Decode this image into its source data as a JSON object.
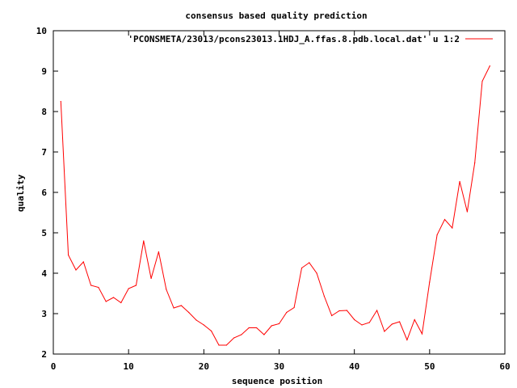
{
  "chart_data": {
    "type": "line",
    "title": "consensus based quality prediction",
    "xlabel": "sequence position",
    "ylabel": "quality",
    "xlim": [
      0,
      60
    ],
    "ylim": [
      2,
      10
    ],
    "xticks": [
      "0",
      "10",
      "20",
      "30",
      "40",
      "50",
      "60"
    ],
    "yticks": [
      "2",
      "3",
      "4",
      "5",
      "6",
      "7",
      "8",
      "9",
      "10"
    ],
    "grid": false,
    "legend_position": "top-right",
    "series": [
      {
        "name": "'PCONSMETA/23013/pcons23013.1HDJ_A.ffas.8.pdb.local.dat' u 1:2",
        "color": "#ff0000",
        "x": [
          1,
          2,
          3,
          4,
          5,
          6,
          7,
          8,
          9,
          10,
          11,
          12,
          13,
          14,
          15,
          16,
          17,
          18,
          19,
          20,
          21,
          22,
          23,
          24,
          25,
          26,
          27,
          28,
          29,
          30,
          31,
          32,
          33,
          34,
          35,
          36,
          37,
          38,
          39,
          40,
          41,
          42,
          43,
          44,
          45,
          46,
          47,
          48,
          49,
          50,
          51,
          52,
          53,
          54,
          55,
          56,
          57,
          58
        ],
        "y": [
          8.25,
          4.45,
          4.08,
          4.28,
          3.7,
          3.65,
          3.3,
          3.4,
          3.27,
          3.62,
          3.7,
          4.8,
          3.87,
          4.53,
          3.6,
          3.14,
          3.2,
          3.03,
          2.84,
          2.72,
          2.57,
          2.22,
          2.22,
          2.4,
          2.48,
          2.65,
          2.65,
          2.48,
          2.7,
          2.75,
          3.03,
          3.15,
          4.13,
          4.26,
          4.0,
          3.43,
          2.95,
          3.07,
          3.08,
          2.85,
          2.72,
          2.78,
          3.08,
          2.56,
          2.74,
          2.8,
          2.35,
          2.85,
          2.5,
          3.78,
          4.95,
          5.33,
          5.12,
          6.27,
          5.52,
          6.73,
          8.75,
          9.13
        ]
      }
    ]
  }
}
